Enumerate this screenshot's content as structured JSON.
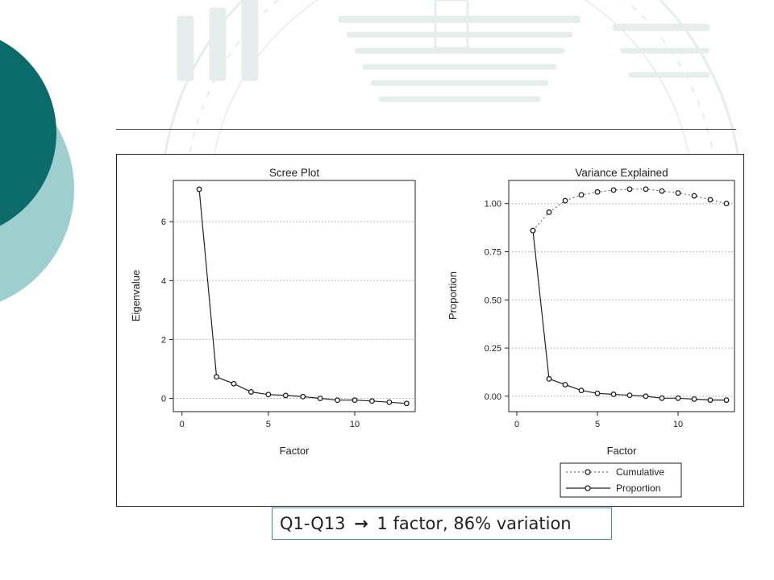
{
  "caption": {
    "before_arrow": "Q1-Q13",
    "arrow": "→",
    "after_arrow": "1 factor, 86% variation"
  },
  "colors": {
    "deco_dark": "#0b6b6b",
    "deco_light": "#9ecfcf",
    "watermark": "#e6eded",
    "caption_border": "#3a8f8f"
  },
  "chart_data": [
    {
      "type": "line",
      "title": "Scree Plot",
      "xlabel": "Factor",
      "ylabel": "Eigenvalue",
      "xlim": [
        -0.5,
        13.5
      ],
      "ylim": [
        -0.45,
        7.4
      ],
      "xticks": [
        0,
        5,
        10
      ],
      "yticks": [
        0,
        2,
        4,
        6
      ],
      "ytick_labels": [
        "0",
        "2",
        "4",
        "6"
      ],
      "grid": "horizontal dotted",
      "series": [
        {
          "x": [
            1,
            2,
            3,
            4,
            5,
            6,
            7,
            8,
            9,
            10,
            11,
            12,
            13
          ],
          "values": [
            7.1,
            0.73,
            0.5,
            0.22,
            0.13,
            0.1,
            0.06,
            0.0,
            -0.06,
            -0.06,
            -0.09,
            -0.13,
            -0.17
          ]
        }
      ]
    },
    {
      "type": "line",
      "title": "Variance Explained",
      "xlabel": "Factor",
      "ylabel": "Proportion",
      "xlim": [
        -0.5,
        13.5
      ],
      "ylim": [
        -0.08,
        1.12
      ],
      "xticks": [
        0,
        5,
        10
      ],
      "yticks": [
        0,
        0.25,
        0.5,
        0.75,
        1.0
      ],
      "ytick_labels": [
        "0.00",
        "0.25",
        "0.50",
        "0.75",
        "1.00"
      ],
      "grid": "horizontal dotted",
      "legend_position": "bottom",
      "series": [
        {
          "name": "Cumulative",
          "style": "dotted",
          "x": [
            1,
            2,
            3,
            4,
            5,
            6,
            7,
            8,
            9,
            10,
            11,
            12,
            13
          ],
          "values": [
            0.86,
            0.955,
            1.015,
            1.045,
            1.06,
            1.07,
            1.075,
            1.075,
            1.065,
            1.055,
            1.04,
            1.02,
            1.0
          ]
        },
        {
          "name": "Proportion",
          "style": "solid",
          "x": [
            1,
            2,
            3,
            4,
            5,
            6,
            7,
            8,
            9,
            10,
            11,
            12,
            13
          ],
          "values": [
            0.86,
            0.09,
            0.06,
            0.03,
            0.015,
            0.01,
            0.005,
            0.0,
            -0.01,
            -0.01,
            -0.015,
            -0.02,
            -0.02
          ]
        }
      ]
    }
  ]
}
